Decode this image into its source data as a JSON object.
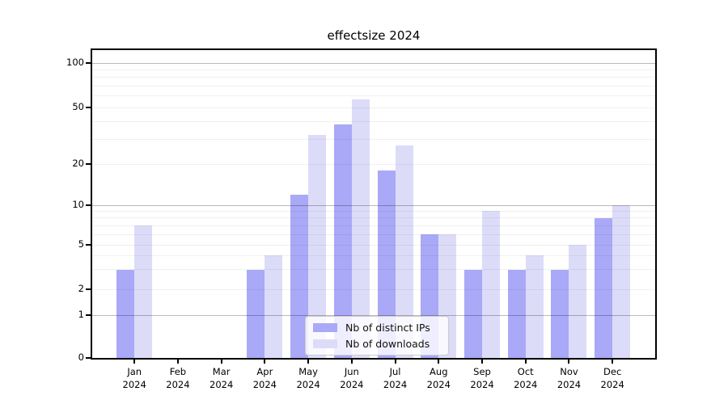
{
  "chart_data": {
    "type": "bar",
    "title": "effectsize 2024",
    "year_label": "2024",
    "months": [
      "Jan",
      "Feb",
      "Mar",
      "Apr",
      "May",
      "Jun",
      "Jul",
      "Aug",
      "Sep",
      "Oct",
      "Nov",
      "Dec"
    ],
    "categories": [
      "Jan 2024",
      "Feb 2024",
      "Mar 2024",
      "Apr 2024",
      "May 2024",
      "Jun 2024",
      "Jul 2024",
      "Aug 2024",
      "Sep 2024",
      "Oct 2024",
      "Nov 2024",
      "Dec 2024"
    ],
    "series": [
      {
        "name": "Nb of distinct IPs",
        "color": "#a9a9f7",
        "values": [
          3,
          0,
          0,
          3,
          12,
          38,
          18,
          6,
          3,
          3,
          3,
          8
        ]
      },
      {
        "name": "Nb of downloads",
        "color": "#dcdcf9",
        "values": [
          7,
          0,
          0,
          4,
          32,
          57,
          27,
          6,
          9,
          4,
          5,
          10
        ]
      }
    ],
    "y_axis": {
      "scale": "symlog",
      "ticks": [
        0,
        1,
        2,
        5,
        10,
        20,
        50,
        100
      ],
      "ylim": [
        0,
        125
      ]
    },
    "grid": {
      "on": true,
      "major_values": [
        1,
        10,
        100
      ],
      "minor_values": [
        2,
        3,
        4,
        5,
        6,
        7,
        8,
        9,
        20,
        30,
        40,
        50,
        60,
        70,
        80,
        90
      ]
    },
    "legend": {
      "position": "lower-center",
      "entries": [
        "Nb of distinct IPs",
        "Nb of downloads"
      ]
    }
  }
}
